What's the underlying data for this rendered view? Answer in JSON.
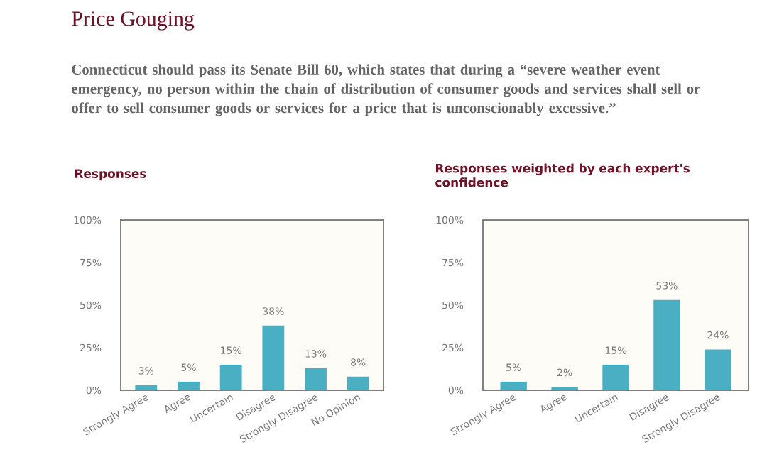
{
  "chart_data": [
    {
      "type": "bar",
      "title": "Responses",
      "annotations": [
        "Price Gouging",
        "Connecticut should pass its Senate Bill 60, which states that during a “severe weather event emergency, no person within the chain of distribution of consumer goods and services shall sell or offer to sell consumer goods or services for a price that is unconscionably excessive.”"
      ],
      "categories": [
        "Strongly Agree",
        "Agree",
        "Uncertain",
        "Disagree",
        "Strongly Disagree",
        "No Opinion"
      ],
      "values": [
        3,
        5,
        15,
        38,
        13,
        8
      ],
      "value_labels": [
        "3%",
        "5%",
        "15%",
        "38%",
        "13%",
        "8%"
      ],
      "color": "#4bafc4",
      "ylim": [
        0,
        100
      ],
      "yticks": [
        {
          "value": 0,
          "label": "0%"
        },
        {
          "value": 25,
          "label": "25%"
        },
        {
          "value": 50,
          "label": "50%"
        },
        {
          "value": 75,
          "label": "75%"
        },
        {
          "value": 100,
          "label": "100%"
        }
      ]
    },
    {
      "type": "bar",
      "title": "Responses weighted by each expert's confidence",
      "categories": [
        "Strongly Agree",
        "Agree",
        "Uncertain",
        "Disagree",
        "Strongly Disagree"
      ],
      "values": [
        5,
        2,
        15,
        53,
        24
      ],
      "value_labels": [
        "5%",
        "2%",
        "15%",
        "53%",
        "24%"
      ],
      "color": "#4bafc4",
      "ylim": [
        0,
        100
      ],
      "yticks": [
        {
          "value": 0,
          "label": "0%"
        },
        {
          "value": 25,
          "label": "25%"
        },
        {
          "value": 50,
          "label": "50%"
        },
        {
          "value": 75,
          "label": "75%"
        },
        {
          "value": 100,
          "label": "100%"
        }
      ]
    }
  ]
}
